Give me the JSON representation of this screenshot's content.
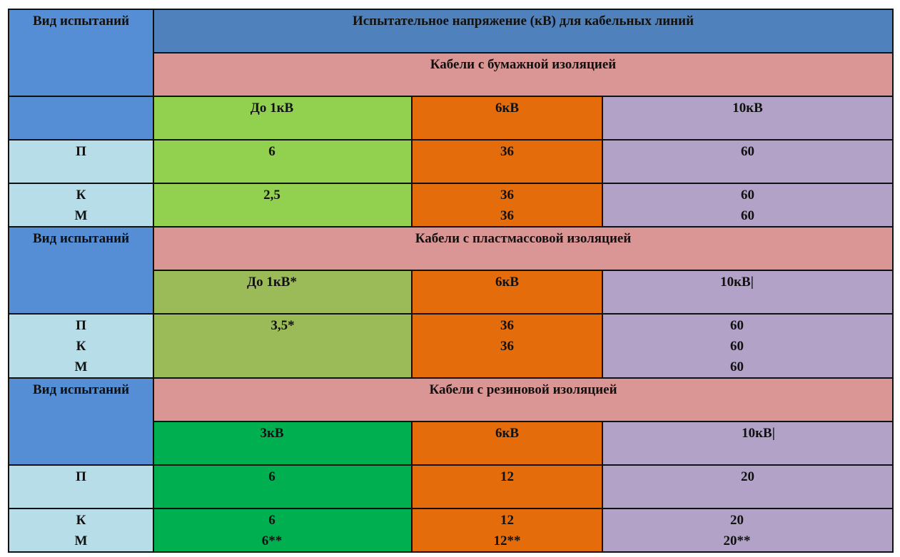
{
  "header": {
    "test_type": "Вид испытаний",
    "title": "Испытательное напряжение (кВ) для кабельных линий"
  },
  "sections": [
    {
      "name": "Кабели с бумажной изоляцией",
      "test_type": "",
      "columns": [
        "До 1кВ",
        "6кВ",
        "10кВ"
      ],
      "rows": [
        {
          "labels": [
            "П"
          ],
          "cells": [
            [
              "6"
            ],
            [
              "36"
            ],
            [
              "60"
            ]
          ]
        },
        {
          "labels": [
            "К",
            "М"
          ],
          "cells": [
            [
              "2,5",
              ""
            ],
            [
              "36",
              "36"
            ],
            [
              "60",
              "60"
            ]
          ]
        }
      ]
    },
    {
      "name": "Кабели с пластмассовой изоляцией",
      "test_type": "Вид испытаний",
      "columns": [
        "До 1кВ*",
        "6кВ",
        "10кВ|"
      ],
      "rows": [
        {
          "labels": [
            "П",
            "К",
            "М"
          ],
          "cells": [
            [
              "3,5*",
              "",
              ""
            ],
            [
              "36",
              "36",
              ""
            ],
            [
              "60",
              "60",
              "60"
            ]
          ]
        }
      ]
    },
    {
      "name": "Кабели с резиновой изоляцией",
      "test_type": "Вид испытаний",
      "columns": [
        "3кВ",
        "6кВ",
        "10кВ|"
      ],
      "rows": [
        {
          "labels": [
            "П"
          ],
          "cells": [
            [
              "6"
            ],
            [
              "12"
            ],
            [
              "20"
            ]
          ]
        },
        {
          "labels": [
            "К",
            "М"
          ],
          "cells": [
            [
              "6",
              "6**"
            ],
            [
              "12",
              "12**"
            ],
            [
              "20",
              "20**"
            ]
          ]
        }
      ]
    }
  ],
  "colors": {
    "header_blue": "#558ed5",
    "title_blue": "#4f81bd",
    "section_pink": "#d99694",
    "label_light_blue": "#b7dde8",
    "col1_paper": "#92d050",
    "col1_plastic": "#9bbb59",
    "col1_rubber": "#00b050",
    "col_6kv": "#e46c0a",
    "col_10kv": "#b2a2c7"
  }
}
